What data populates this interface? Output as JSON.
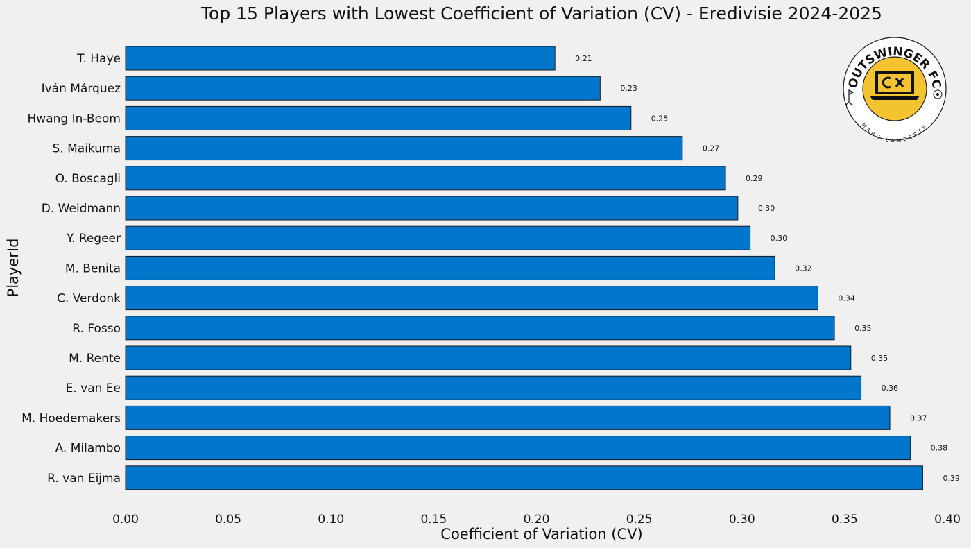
{
  "chart_data": {
    "type": "bar",
    "orientation": "horizontal",
    "title": "Top 15 Players with Lowest Coefficient of Variation (CV) - Eredivisie 2024-2025",
    "xlabel": "Coefficient of Variation (CV)",
    "ylabel": "PlayerId",
    "xlim": [
      0,
      0.4
    ],
    "xticks": [
      "0.00",
      "0.05",
      "0.10",
      "0.15",
      "0.20",
      "0.25",
      "0.30",
      "0.35",
      "0.40"
    ],
    "grid": false,
    "categories": [
      "T. Haye",
      "Iván Márquez",
      "Hwang In-Beom",
      "S. Maikuma",
      "O. Boscagli",
      "D. Weidmann",
      "Y. Regeer",
      "M. Benita",
      "C. Verdonk",
      "R. Fosso",
      "M. Rente",
      "E. van Ee",
      "M. Hoedemakers",
      "A. Milambo",
      "R. van Eijma"
    ],
    "values": [
      0.209,
      0.231,
      0.246,
      0.271,
      0.292,
      0.298,
      0.304,
      0.316,
      0.337,
      0.345,
      0.353,
      0.358,
      0.372,
      0.382,
      0.388
    ],
    "value_labels": [
      "0.21",
      "0.23",
      "0.25",
      "0.27",
      "0.29",
      "0.30",
      "0.30",
      "0.32",
      "0.34",
      "0.35",
      "0.35",
      "0.36",
      "0.37",
      "0.38",
      "0.39"
    ],
    "bar_color": "#0077cc"
  },
  "logo": {
    "name": "OUTSWINGER FC",
    "author": "MARC LAMBERTS",
    "accent": "#f4c430"
  }
}
